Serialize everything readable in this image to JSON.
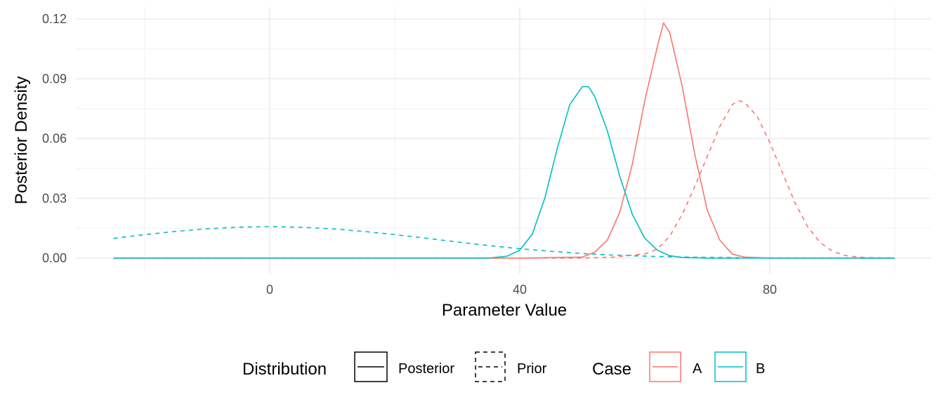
{
  "chart_data": {
    "type": "line",
    "xlabel": "Parameter Value",
    "ylabel": "Posterior Density",
    "xlim": [
      -25,
      100
    ],
    "ylim": [
      0,
      0.12
    ],
    "x_ticks": [
      0,
      40,
      80
    ],
    "x_tick_labels": [
      "0",
      "40",
      "80"
    ],
    "y_ticks": [
      0,
      0.03,
      0.06,
      0.09,
      0.12
    ],
    "y_tick_labels": [
      "0.00",
      "0.03",
      "0.06",
      "0.09",
      "0.12"
    ],
    "grid": true,
    "legend_position": "bottom",
    "legend": {
      "distribution": {
        "title": "Distribution",
        "entries": [
          {
            "label": "Posterior",
            "linetype": "solid"
          },
          {
            "label": "Prior",
            "linetype": "dashed"
          }
        ]
      },
      "case": {
        "title": "Case",
        "entries": [
          {
            "label": "A",
            "color": "#F8766D"
          },
          {
            "label": "B",
            "color": "#00BFC4"
          }
        ]
      }
    },
    "series": [
      {
        "case": "A",
        "distribution": "Posterior",
        "color": "#F8766D",
        "linetype": "solid",
        "x": [
          -25,
          40,
          50,
          52,
          54,
          56,
          58,
          60,
          62,
          63,
          64,
          66,
          68,
          70,
          72,
          74,
          76,
          80,
          100
        ],
        "y": [
          0,
          0,
          0.0005,
          0.003,
          0.009,
          0.023,
          0.047,
          0.079,
          0.106,
          0.118,
          0.113,
          0.086,
          0.052,
          0.024,
          0.009,
          0.002,
          0.0005,
          0,
          0
        ]
      },
      {
        "case": "B",
        "distribution": "Posterior",
        "color": "#00BFC4",
        "linetype": "solid",
        "x": [
          -25,
          35,
          38,
          40,
          42,
          44,
          46,
          48,
          50,
          51,
          52,
          54,
          56,
          58,
          60,
          62,
          64,
          66,
          70,
          100
        ],
        "y": [
          0,
          0,
          0.001,
          0.004,
          0.012,
          0.03,
          0.055,
          0.077,
          0.086,
          0.086,
          0.081,
          0.064,
          0.041,
          0.022,
          0.01,
          0.004,
          0.0012,
          0.0003,
          0,
          0
        ]
      },
      {
        "case": "A",
        "distribution": "Prior",
        "color": "#F8766D",
        "linetype": "dashed",
        "x": [
          -25,
          50,
          55,
          58,
          60,
          62,
          64,
          66,
          68,
          70,
          72,
          74,
          75,
          76,
          78,
          80,
          82,
          84,
          86,
          88,
          90,
          92,
          95,
          100
        ],
        "y": [
          0,
          0,
          0.0005,
          0.0015,
          0.002,
          0.0045,
          0.011,
          0.022,
          0.036,
          0.051,
          0.066,
          0.077,
          0.079,
          0.078,
          0.071,
          0.058,
          0.043,
          0.028,
          0.016,
          0.008,
          0.0035,
          0.0013,
          0.0003,
          0
        ]
      },
      {
        "case": "B",
        "distribution": "Prior",
        "color": "#00BFC4",
        "linetype": "dashed",
        "x": [
          -25,
          -20,
          -15,
          -10,
          -5,
          0,
          5,
          10,
          15,
          20,
          25,
          30,
          35,
          40,
          45,
          50,
          55,
          60,
          65,
          70,
          80,
          90,
          100
        ],
        "y": [
          0.0099,
          0.0118,
          0.0134,
          0.0147,
          0.0155,
          0.0158,
          0.0155,
          0.0147,
          0.0134,
          0.0118,
          0.01,
          0.0081,
          0.0063,
          0.0047,
          0.0034,
          0.0023,
          0.0015,
          0.001,
          0.0006,
          0.0004,
          0.0001,
          3e-05,
          0
        ]
      }
    ]
  }
}
